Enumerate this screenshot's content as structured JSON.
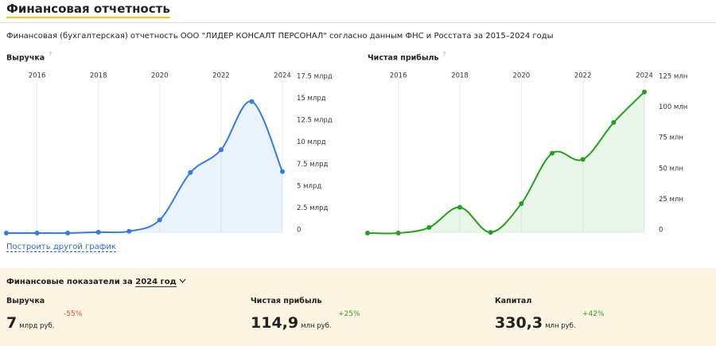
{
  "header": {
    "title": "Финансовая отчетность",
    "subtitle": "Финансовая (бухгалтерская) отчетность ООО \"ЛИДЕР КОНСАЛТ ПЕРСОНАЛ\" согласно данным ФНС и Росстата за 2015–2024 годы"
  },
  "help_mark": "?",
  "link": "Построить другой график",
  "chart_data": [
    {
      "type": "line",
      "title": "Выручка",
      "x": [
        2015,
        2016,
        2017,
        2018,
        2019,
        2020,
        2021,
        2022,
        2023,
        2024
      ],
      "series": [
        {
          "name": "Выручка",
          "color": "#2f7de1",
          "values": [
            0,
            0,
            0,
            0.1,
            0.2,
            1.5,
            6.9,
            9.5,
            15.0,
            7
          ]
        }
      ],
      "xlim": [
        2015,
        2024
      ],
      "xticks": [
        2016,
        2018,
        2020,
        2022,
        2024
      ],
      "ylim": [
        0,
        17.5
      ],
      "yticks": [
        0,
        {
          "value": 2.5,
          "label": "2.5 млрд"
        },
        {
          "value": 5,
          "label": "5 млрд"
        },
        {
          "value": 7.5,
          "label": "7.5 млрд"
        },
        {
          "value": 10,
          "label": "10 млрд"
        },
        {
          "value": 12.5,
          "label": "12.5 млрд"
        },
        {
          "value": 15,
          "label": "15 млрд"
        },
        {
          "value": 17.5,
          "label": "17.5 млрд"
        }
      ],
      "grid": "x"
    },
    {
      "type": "line",
      "title": "Чистая прибыль",
      "x": [
        2015,
        2016,
        2017,
        2018,
        2019,
        2020,
        2021,
        2022,
        2023,
        2024
      ],
      "series": [
        {
          "name": "Чистая прибыль",
          "color": "#23a11c",
          "values": [
            0,
            0,
            4.5,
            21,
            0.6,
            24,
            65,
            60,
            90,
            114.9
          ]
        }
      ],
      "xlim": [
        2015,
        2024
      ],
      "xticks": [
        2016,
        2018,
        2020,
        2022,
        2024
      ],
      "ylim": [
        0,
        125
      ],
      "yticks": [
        0,
        {
          "value": 25,
          "label": "25 млн"
        },
        {
          "value": 50,
          "label": "50 млн"
        },
        {
          "value": 75,
          "label": "75 млн"
        },
        {
          "value": 100,
          "label": "100 млн"
        },
        {
          "value": 125,
          "label": "125 млн"
        }
      ],
      "grid": "x"
    }
  ],
  "summary": {
    "title": "Финансовые показатели за",
    "year": "2024 год",
    "items": [
      {
        "label": "Выручка",
        "value": "7",
        "unit": "млрд руб.",
        "change": "-55%"
      },
      {
        "label": "Чистая прибыль",
        "value": "114,9",
        "unit": "млн руб.",
        "change": "+25%"
      },
      {
        "label": "Капитал",
        "value": "330,3",
        "unit": "млн руб.",
        "change": "+42%"
      }
    ]
  }
}
